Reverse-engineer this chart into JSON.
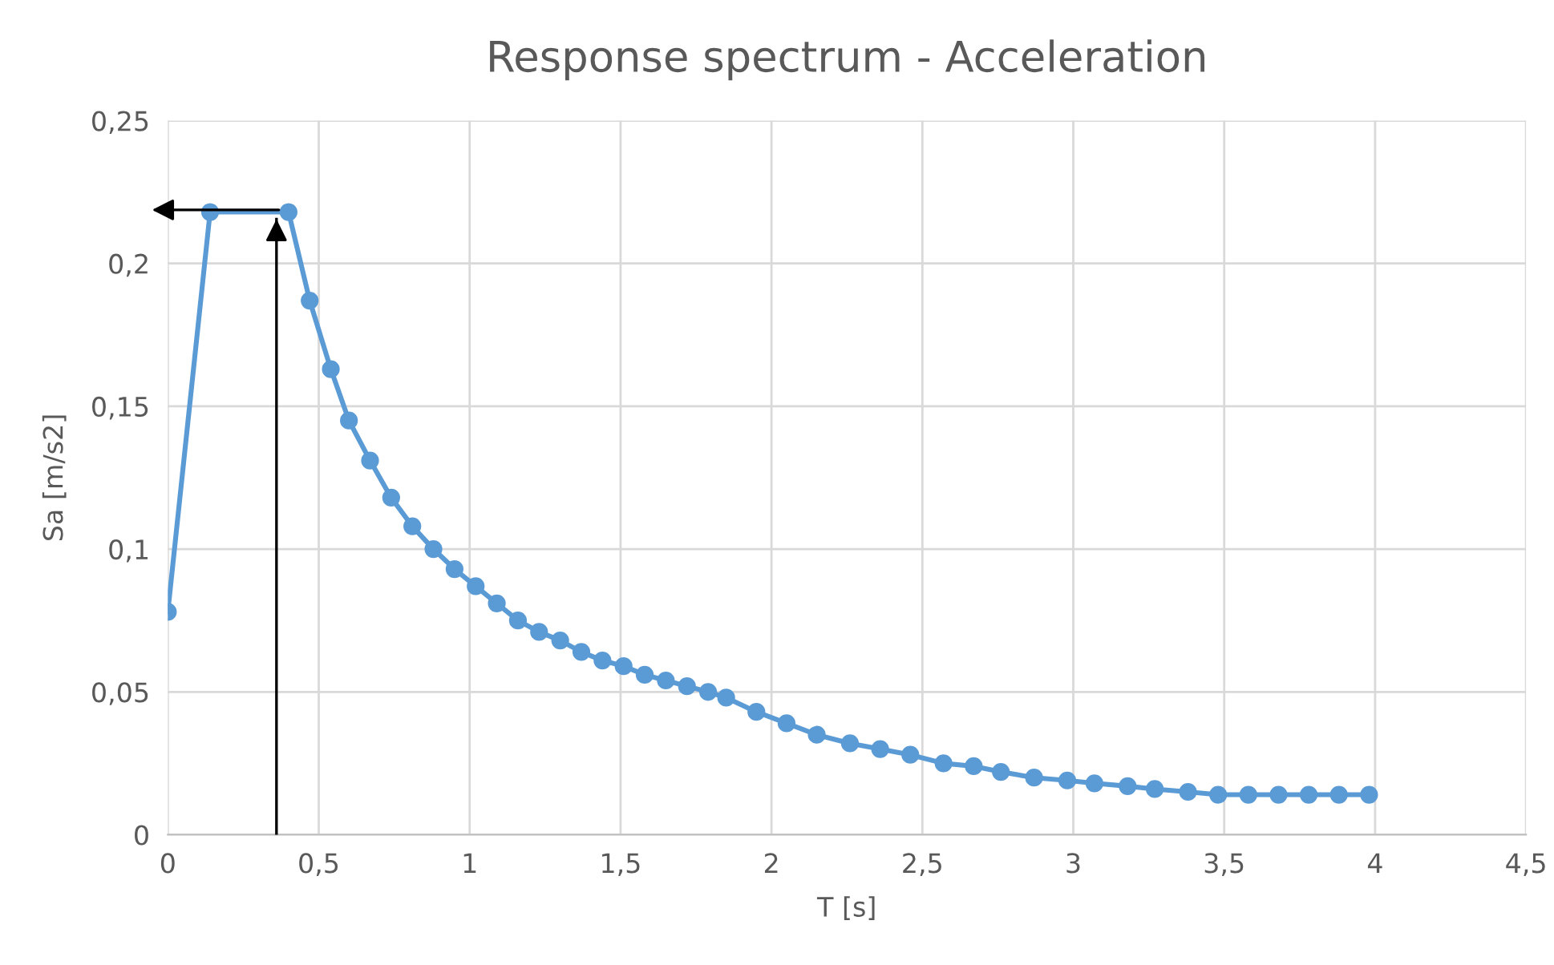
{
  "chart_data": {
    "type": "line",
    "title": "Response spectrum - Acceleration",
    "xlabel": "T [s]",
    "ylabel": "Sa [m/s2]",
    "x": [
      0,
      0.14,
      0.4,
      0.47,
      0.54,
      0.6,
      0.67,
      0.74,
      0.81,
      0.88,
      0.95,
      1.02,
      1.09,
      1.16,
      1.23,
      1.3,
      1.37,
      1.44,
      1.51,
      1.58,
      1.65,
      1.72,
      1.79,
      1.85,
      1.95,
      2.05,
      2.15,
      2.26,
      2.36,
      2.46,
      2.57,
      2.67,
      2.76,
      2.87,
      2.98,
      3.07,
      3.18,
      3.27,
      3.38,
      3.48,
      3.58,
      3.68,
      3.78,
      3.88,
      3.98
    ],
    "series": [
      {
        "color": "#5b9bd5",
        "values": [
          0.078,
          0.218,
          0.218,
          0.187,
          0.163,
          0.145,
          0.131,
          0.118,
          0.108,
          0.1,
          0.093,
          0.087,
          0.081,
          0.075,
          0.071,
          0.068,
          0.064,
          0.061,
          0.059,
          0.056,
          0.054,
          0.052,
          0.05,
          0.048,
          0.043,
          0.039,
          0.035,
          0.032,
          0.03,
          0.028,
          0.025,
          0.024,
          0.022,
          0.02,
          0.019,
          0.018,
          0.017,
          0.016,
          0.015,
          0.014,
          0.014,
          0.014,
          0.014,
          0.014,
          0.014
        ]
      }
    ],
    "xlim": [
      0,
      4.5
    ],
    "xticks": [
      0,
      {
        "value": 0.5,
        "label": "0,5"
      },
      1,
      {
        "value": 1.5,
        "label": "1,5"
      },
      2,
      {
        "value": 2.5,
        "label": "2,5"
      },
      3,
      {
        "value": 3.5,
        "label": "3,5"
      },
      4,
      {
        "value": 4.5,
        "label": "4,5"
      }
    ],
    "ylim": [
      0,
      0.25
    ],
    "yticks": [
      0,
      {
        "value": 0.05,
        "label": "0,05"
      },
      {
        "value": 0.1,
        "label": "0,1"
      },
      {
        "value": 0.15,
        "label": "0,15"
      },
      {
        "value": 0.2,
        "label": "0,2"
      },
      {
        "value": 0.25,
        "label": "0,25"
      }
    ],
    "ref_lines": [
      {
        "axis": "x",
        "value": 0.36,
        "color": "#000000"
      }
    ],
    "grid": true,
    "legend": false,
    "marker": "circle",
    "line_style": "solid"
  }
}
